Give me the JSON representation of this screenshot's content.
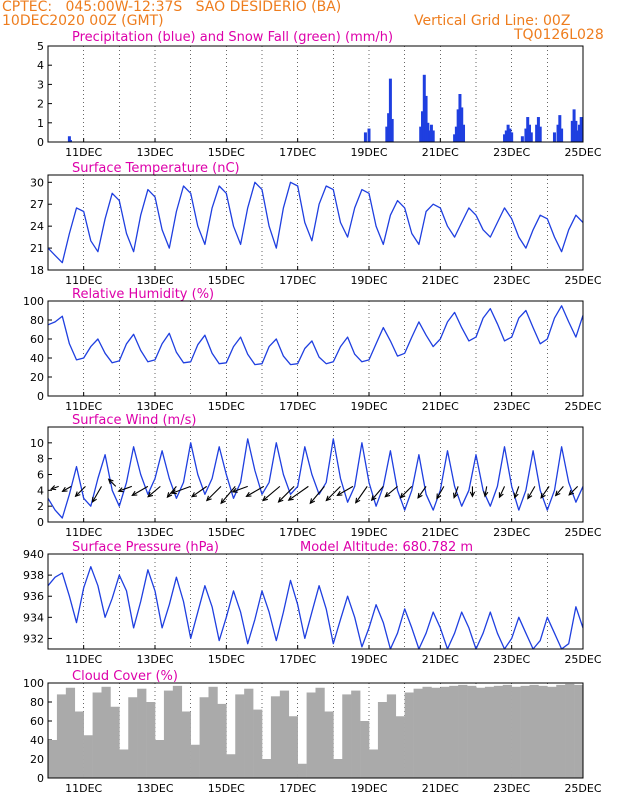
{
  "header": {
    "line1": "CPTEC:   045:00W-12:37S   SAO DESIDERIO (BA)",
    "line2": "10DEC2020 00Z (GMT)",
    "grid_note": "Vertical Grid Line: 00Z",
    "code": "TQ0126L028"
  },
  "colors": {
    "header": "#ee7d1e",
    "title": "#dd00aa",
    "series": "#1f3fe0",
    "snow": "#22aa22",
    "cloud": "#aaaaaa",
    "wind_vector": "#000000"
  },
  "x_ticks": [
    "11DEC",
    "13DEC",
    "15DEC",
    "17DEC",
    "19DEC",
    "21DEC",
    "23DEC",
    "25DEC"
  ],
  "chart_data": [
    {
      "id": "precip",
      "type": "bar",
      "title": "Precipitation (blue) and Snow Fall (green) (mm/h)",
      "ylim": [
        0,
        5
      ],
      "yticks": [
        0,
        1,
        2,
        3,
        4,
        5
      ],
      "x_range_days": [
        10,
        25
      ],
      "grid": "vertical dotted at 00Z",
      "series": [
        {
          "name": "Precipitation",
          "points": [
            [
              10.6,
              0.3
            ],
            [
              10.63,
              0.1
            ],
            [
              18.9,
              0.5
            ],
            [
              19.0,
              0.7
            ],
            [
              19.5,
              0.8
            ],
            [
              19.55,
              1.5
            ],
            [
              19.6,
              3.3
            ],
            [
              19.65,
              1.2
            ],
            [
              20.45,
              0.8
            ],
            [
              20.5,
              1.6
            ],
            [
              20.55,
              3.5
            ],
            [
              20.6,
              2.4
            ],
            [
              20.65,
              1.0
            ],
            [
              20.7,
              0.6
            ],
            [
              20.75,
              0.9
            ],
            [
              20.8,
              0.6
            ],
            [
              21.4,
              0.4
            ],
            [
              21.45,
              0.8
            ],
            [
              21.5,
              1.7
            ],
            [
              21.55,
              2.5
            ],
            [
              21.6,
              1.8
            ],
            [
              21.65,
              0.9
            ],
            [
              22.8,
              0.4
            ],
            [
              22.85,
              0.6
            ],
            [
              22.9,
              0.9
            ],
            [
              22.95,
              0.7
            ],
            [
              23.0,
              0.5
            ],
            [
              23.3,
              0.3
            ],
            [
              23.4,
              0.7
            ],
            [
              23.45,
              1.3
            ],
            [
              23.5,
              0.9
            ],
            [
              23.55,
              0.5
            ],
            [
              23.7,
              0.9
            ],
            [
              23.75,
              1.3
            ],
            [
              23.8,
              0.8
            ],
            [
              24.2,
              0.5
            ],
            [
              24.3,
              0.9
            ],
            [
              24.35,
              1.4
            ],
            [
              24.4,
              0.7
            ],
            [
              24.7,
              1.1
            ],
            [
              24.75,
              1.7
            ],
            [
              24.8,
              1.1
            ],
            [
              24.85,
              0.6
            ],
            [
              24.9,
              0.9
            ],
            [
              24.95,
              1.3
            ]
          ]
        },
        {
          "name": "Snow Fall",
          "points": []
        }
      ]
    },
    {
      "id": "temp",
      "type": "line",
      "title": "Surface Temperature (nC)",
      "ylim": [
        18,
        31
      ],
      "yticks": [
        18,
        21,
        24,
        27,
        30
      ],
      "x": [
        10.0,
        10.2,
        10.4,
        10.6,
        10.8,
        11.0,
        11.2,
        11.4,
        11.6,
        11.8,
        12.0,
        12.2,
        12.4,
        12.6,
        12.8,
        13.0,
        13.2,
        13.4,
        13.6,
        13.8,
        14.0,
        14.2,
        14.4,
        14.6,
        14.8,
        15.0,
        15.2,
        15.4,
        15.6,
        15.8,
        16.0,
        16.2,
        16.4,
        16.6,
        16.8,
        17.0,
        17.2,
        17.4,
        17.6,
        17.8,
        18.0,
        18.2,
        18.4,
        18.6,
        18.8,
        19.0,
        19.2,
        19.4,
        19.6,
        19.8,
        20.0,
        20.2,
        20.4,
        20.6,
        20.8,
        21.0,
        21.2,
        21.4,
        21.6,
        21.8,
        22.0,
        22.2,
        22.4,
        22.6,
        22.8,
        23.0,
        23.2,
        23.4,
        23.6,
        23.8,
        24.0,
        24.2,
        24.4,
        24.6,
        24.8,
        25.0
      ],
      "values": [
        21.0,
        20.0,
        19.0,
        23.0,
        26.5,
        26.0,
        22.0,
        20.5,
        25.0,
        28.5,
        27.5,
        23.0,
        20.5,
        25.5,
        29.0,
        28.0,
        23.5,
        21.0,
        26.0,
        29.5,
        28.5,
        24.0,
        21.5,
        26.5,
        29.5,
        28.5,
        24.0,
        21.5,
        26.5,
        30.0,
        29.0,
        24.0,
        21.0,
        26.5,
        30.0,
        29.5,
        24.5,
        22.0,
        27.0,
        29.5,
        29.0,
        24.5,
        22.5,
        26.5,
        29.0,
        28.5,
        24.0,
        21.5,
        25.5,
        27.5,
        26.5,
        23.0,
        21.5,
        26.0,
        27.0,
        26.5,
        24.0,
        22.5,
        24.5,
        26.5,
        25.5,
        23.5,
        22.5,
        24.5,
        26.5,
        25.0,
        22.5,
        21.0,
        23.5,
        25.5,
        25.0,
        22.5,
        20.5,
        23.5,
        25.5,
        24.5
      ]
    },
    {
      "id": "rh",
      "type": "line",
      "title": "Relative Humidity (%)",
      "ylim": [
        0,
        100
      ],
      "yticks": [
        0,
        20,
        40,
        60,
        80,
        100
      ],
      "x": [
        10.0,
        10.2,
        10.4,
        10.6,
        10.8,
        11.0,
        11.2,
        11.4,
        11.6,
        11.8,
        12.0,
        12.2,
        12.4,
        12.6,
        12.8,
        13.0,
        13.2,
        13.4,
        13.6,
        13.8,
        14.0,
        14.2,
        14.4,
        14.6,
        14.8,
        15.0,
        15.2,
        15.4,
        15.6,
        15.8,
        16.0,
        16.2,
        16.4,
        16.6,
        16.8,
        17.0,
        17.2,
        17.4,
        17.6,
        17.8,
        18.0,
        18.2,
        18.4,
        18.6,
        18.8,
        19.0,
        19.2,
        19.4,
        19.6,
        19.8,
        20.0,
        20.2,
        20.4,
        20.6,
        20.8,
        21.0,
        21.2,
        21.4,
        21.6,
        21.8,
        22.0,
        22.2,
        22.4,
        22.6,
        22.8,
        23.0,
        23.2,
        23.4,
        23.6,
        23.8,
        24.0,
        24.2,
        24.4,
        24.6,
        24.8,
        25.0
      ],
      "values": [
        75,
        78,
        84,
        55,
        38,
        40,
        52,
        60,
        45,
        35,
        37,
        55,
        65,
        48,
        36,
        38,
        55,
        66,
        46,
        35,
        36,
        54,
        64,
        45,
        34,
        35,
        52,
        62,
        44,
        33,
        34,
        52,
        60,
        42,
        33,
        34,
        50,
        58,
        41,
        34,
        36,
        52,
        62,
        44,
        36,
        38,
        55,
        72,
        58,
        42,
        45,
        62,
        78,
        64,
        52,
        60,
        78,
        88,
        72,
        58,
        62,
        82,
        92,
        76,
        58,
        62,
        82,
        90,
        72,
        55,
        60,
        82,
        95,
        78,
        62,
        85
      ]
    },
    {
      "id": "wind",
      "type": "line",
      "title": "Surface Wind (m/s)",
      "ylim": [
        0,
        12
      ],
      "yticks": [
        0,
        2,
        4,
        6,
        8,
        10
      ],
      "x": [
        10.0,
        10.2,
        10.4,
        10.6,
        10.8,
        11.0,
        11.2,
        11.4,
        11.6,
        11.8,
        12.0,
        12.2,
        12.4,
        12.6,
        12.8,
        13.0,
        13.2,
        13.4,
        13.6,
        13.8,
        14.0,
        14.2,
        14.4,
        14.6,
        14.8,
        15.0,
        15.2,
        15.4,
        15.6,
        15.8,
        16.0,
        16.2,
        16.4,
        16.6,
        16.8,
        17.0,
        17.2,
        17.4,
        17.6,
        17.8,
        18.0,
        18.2,
        18.4,
        18.6,
        18.8,
        19.0,
        19.2,
        19.4,
        19.6,
        19.8,
        20.0,
        20.2,
        20.4,
        20.6,
        20.8,
        21.0,
        21.2,
        21.4,
        21.6,
        21.8,
        22.0,
        22.2,
        22.4,
        22.6,
        22.8,
        23.0,
        23.2,
        23.4,
        23.6,
        23.8,
        24.0,
        24.2,
        24.4,
        24.6,
        24.8,
        25.0
      ],
      "values": [
        3.0,
        1.5,
        0.5,
        3.5,
        7.0,
        3.0,
        2.0,
        5.5,
        8.5,
        4.0,
        2.0,
        5.0,
        9.5,
        6.0,
        3.5,
        5.5,
        9.0,
        5.5,
        3.0,
        5.0,
        10.0,
        6.0,
        3.5,
        5.5,
        9.5,
        6.0,
        3.0,
        5.0,
        10.5,
        6.5,
        3.5,
        5.0,
        10.0,
        6.0,
        3.5,
        4.5,
        9.5,
        6.0,
        3.5,
        5.0,
        10.5,
        5.5,
        2.5,
        4.5,
        10.0,
        5.0,
        2.0,
        4.5,
        9.0,
        4.0,
        1.5,
        4.0,
        8.5,
        3.5,
        1.5,
        4.0,
        9.0,
        4.5,
        2.0,
        4.0,
        8.5,
        4.0,
        2.0,
        4.5,
        9.5,
        4.5,
        1.5,
        4.0,
        9.0,
        4.0,
        1.5,
        4.0,
        9.5,
        5.0,
        2.5,
        4.5
      ],
      "vectors_deg_len": [
        [
          10.3,
          200,
          8
        ],
        [
          10.65,
          210,
          10
        ],
        [
          11.05,
          225,
          14
        ],
        [
          11.5,
          240,
          18
        ],
        [
          11.9,
          135,
          10
        ],
        [
          12.35,
          200,
          14
        ],
        [
          12.8,
          210,
          18
        ],
        [
          13.15,
          220,
          16
        ],
        [
          13.6,
          230,
          14
        ],
        [
          14.0,
          200,
          20
        ],
        [
          14.45,
          215,
          18
        ],
        [
          14.85,
          225,
          20
        ],
        [
          15.25,
          230,
          22
        ],
        [
          15.6,
          200,
          16
        ],
        [
          16.05,
          210,
          20
        ],
        [
          16.5,
          220,
          22
        ],
        [
          16.9,
          225,
          22
        ],
        [
          17.3,
          215,
          24
        ],
        [
          17.75,
          230,
          22
        ],
        [
          18.2,
          225,
          20
        ],
        [
          18.55,
          210,
          18
        ],
        [
          18.95,
          235,
          20
        ],
        [
          19.4,
          230,
          18
        ],
        [
          19.8,
          220,
          16
        ],
        [
          20.2,
          225,
          16
        ],
        [
          20.6,
          235,
          14
        ],
        [
          21.1,
          240,
          14
        ],
        [
          21.5,
          250,
          12
        ],
        [
          21.9,
          270,
          10
        ],
        [
          22.3,
          260,
          10
        ],
        [
          22.8,
          245,
          12
        ],
        [
          23.2,
          250,
          12
        ],
        [
          23.65,
          240,
          14
        ],
        [
          24.05,
          235,
          14
        ],
        [
          24.45,
          230,
          12
        ],
        [
          24.85,
          225,
          12
        ]
      ]
    },
    {
      "id": "pressure",
      "type": "line",
      "title": "Surface Pressure (hPa)",
      "annotation": "Model Altitude: 680.782  m",
      "ylim": [
        931,
        940
      ],
      "yticks": [
        932,
        934,
        936,
        938,
        940
      ],
      "x": [
        10.0,
        10.2,
        10.4,
        10.6,
        10.8,
        11.0,
        11.2,
        11.4,
        11.6,
        11.8,
        12.0,
        12.2,
        12.4,
        12.6,
        12.8,
        13.0,
        13.2,
        13.4,
        13.6,
        13.8,
        14.0,
        14.2,
        14.4,
        14.6,
        14.8,
        15.0,
        15.2,
        15.4,
        15.6,
        15.8,
        16.0,
        16.2,
        16.4,
        16.6,
        16.8,
        17.0,
        17.2,
        17.4,
        17.6,
        17.8,
        18.0,
        18.2,
        18.4,
        18.6,
        18.8,
        19.0,
        19.2,
        19.4,
        19.6,
        19.8,
        20.0,
        20.2,
        20.4,
        20.6,
        20.8,
        21.0,
        21.2,
        21.4,
        21.6,
        21.8,
        22.0,
        22.2,
        22.4,
        22.6,
        22.8,
        23.0,
        23.2,
        23.4,
        23.6,
        23.8,
        24.0,
        24.2,
        24.4,
        24.6,
        24.8,
        25.0
      ],
      "values": [
        937.0,
        937.8,
        938.2,
        936.0,
        933.5,
        936.8,
        938.8,
        937.0,
        934.0,
        935.8,
        938.0,
        936.5,
        933.0,
        935.5,
        938.5,
        936.5,
        933.0,
        935.2,
        937.8,
        935.5,
        932.0,
        934.5,
        937.0,
        935.0,
        931.8,
        934.0,
        936.5,
        934.5,
        931.5,
        933.8,
        936.5,
        934.5,
        931.8,
        934.5,
        937.5,
        935.2,
        932.0,
        934.5,
        937.0,
        934.8,
        931.5,
        933.8,
        936.0,
        934.0,
        931.2,
        933.0,
        935.2,
        933.5,
        930.8,
        932.5,
        934.8,
        933.0,
        930.5,
        932.5,
        934.5,
        933.0,
        930.5,
        932.5,
        934.5,
        933.0,
        930.8,
        932.5,
        934.5,
        932.5,
        930.2,
        932.0,
        934.0,
        932.5,
        930.0,
        931.8,
        934.0,
        932.5,
        930.0,
        931.5,
        935.0,
        933.0
      ]
    },
    {
      "id": "cloud",
      "type": "bar",
      "title": "Cloud Cover (%)",
      "ylim": [
        0,
        100
      ],
      "yticks": [
        0,
        20,
        40,
        60,
        80,
        100
      ],
      "x": [
        10.0,
        10.25,
        10.5,
        10.75,
        11.0,
        11.25,
        11.5,
        11.75,
        12.0,
        12.25,
        12.5,
        12.75,
        13.0,
        13.25,
        13.5,
        13.75,
        14.0,
        14.25,
        14.5,
        14.75,
        15.0,
        15.25,
        15.5,
        15.75,
        16.0,
        16.25,
        16.5,
        16.75,
        17.0,
        17.25,
        17.5,
        17.75,
        18.0,
        18.25,
        18.5,
        18.75,
        19.0,
        19.25,
        19.5,
        19.75,
        20.0,
        20.25,
        20.5,
        20.75,
        21.0,
        21.25,
        21.5,
        21.75,
        22.0,
        22.25,
        22.5,
        22.75,
        23.0,
        23.25,
        23.5,
        23.75,
        24.0,
        24.25,
        24.5,
        24.75
      ],
      "values": [
        40,
        88,
        95,
        70,
        45,
        90,
        96,
        75,
        30,
        85,
        94,
        80,
        40,
        92,
        97,
        70,
        35,
        85,
        96,
        78,
        25,
        88,
        94,
        72,
        20,
        86,
        92,
        65,
        15,
        90,
        95,
        70,
        20,
        88,
        92,
        60,
        30,
        80,
        88,
        65,
        90,
        94,
        96,
        95,
        96,
        97,
        98,
        97,
        95,
        96,
        97,
        98,
        96,
        97,
        98,
        97,
        96,
        98,
        99,
        98
      ]
    }
  ]
}
